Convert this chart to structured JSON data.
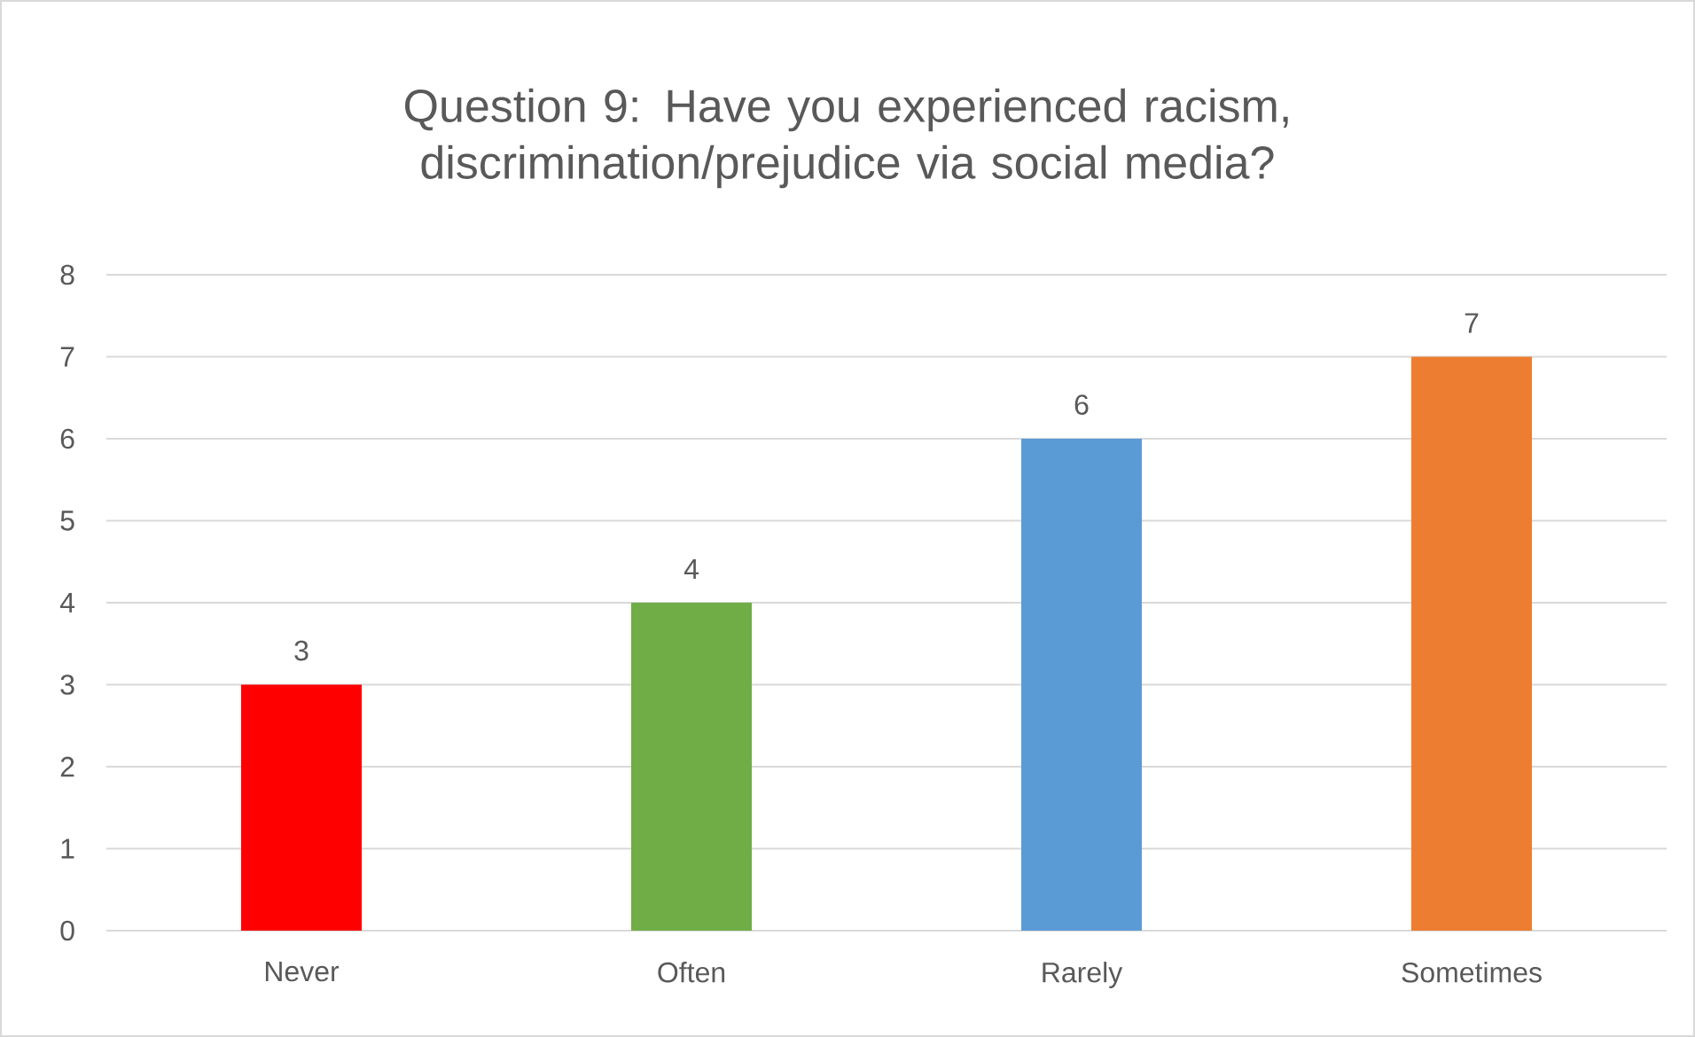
{
  "chart_data": {
    "type": "bar",
    "title": "Question 9: Have you experienced racism, discrimination/prejudice via social media?",
    "categories": [
      "Never",
      "Often",
      "Rarely",
      "Sometimes"
    ],
    "values": [
      3,
      4,
      6,
      7
    ],
    "colors": [
      "#ff0000",
      "#70ad47",
      "#5b9bd5",
      "#ed7d31"
    ],
    "ylim": [
      0,
      8
    ],
    "yticks": [
      0,
      1,
      2,
      3,
      4,
      5,
      6,
      7,
      8
    ],
    "grid": "y",
    "data_labels": true
  }
}
